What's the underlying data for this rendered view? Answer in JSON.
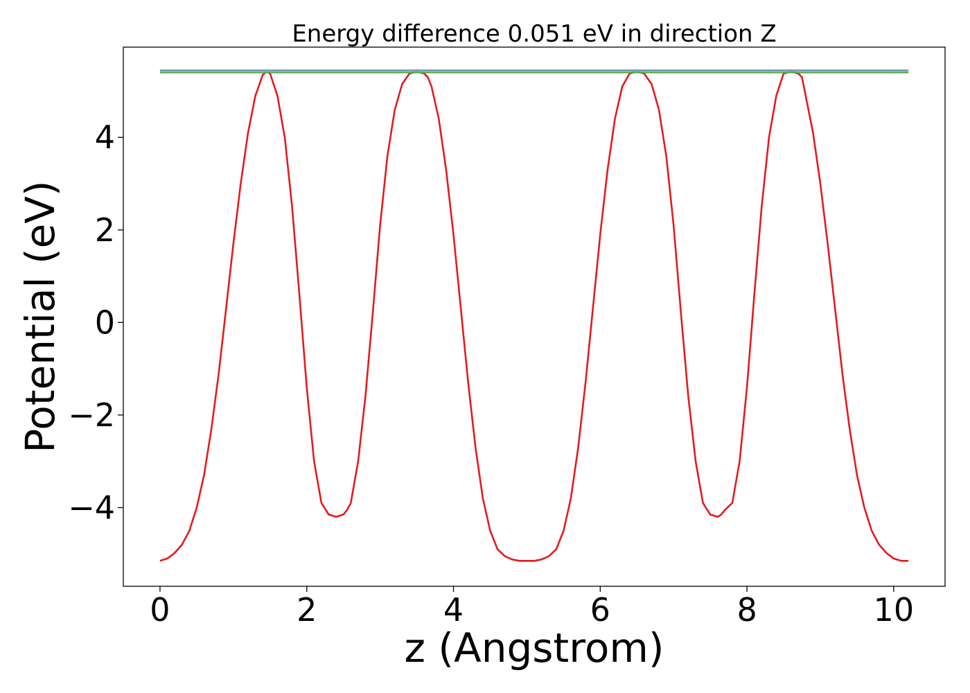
{
  "chart_data": {
    "type": "line",
    "title": "Energy difference 0.051 eV in direction Z",
    "xlabel": "z (Angstrom)",
    "ylabel": "Potential (eV)",
    "xlim": [
      -0.5,
      10.7
    ],
    "ylim": [
      -5.7,
      5.95
    ],
    "xticks": [
      0,
      2,
      4,
      6,
      8,
      10
    ],
    "xtick_labels": [
      "0",
      "2",
      "4",
      "6",
      "8",
      "10"
    ],
    "yticks": [
      -4,
      -2,
      0,
      2,
      4
    ],
    "ytick_labels": [
      "−4",
      "−2",
      "0",
      "2",
      "4"
    ],
    "grid": false,
    "series": [
      {
        "color": "#e41a1c",
        "style": "curve",
        "x": [
          0.0,
          0.1,
          0.2,
          0.3,
          0.4,
          0.5,
          0.6,
          0.7,
          0.8,
          0.9,
          1.0,
          1.1,
          1.2,
          1.3,
          1.4,
          1.45,
          1.5,
          1.6,
          1.7,
          1.8,
          1.9,
          2.0,
          2.1,
          2.2,
          2.3,
          2.4,
          2.5,
          2.55,
          2.6,
          2.7,
          2.8,
          2.9,
          3.0,
          3.1,
          3.2,
          3.3,
          3.4,
          3.5,
          3.6,
          3.65,
          3.7,
          3.8,
          3.9,
          4.0,
          4.1,
          4.2,
          4.3,
          4.4,
          4.5,
          4.6,
          4.7,
          4.8,
          4.9,
          5.0,
          5.1,
          5.2,
          5.3,
          5.4,
          5.5,
          5.6,
          5.7,
          5.8,
          5.9,
          6.0,
          6.1,
          6.2,
          6.3,
          6.4,
          6.5,
          6.6,
          6.7,
          6.8,
          6.9,
          7.0,
          7.1,
          7.2,
          7.3,
          7.4,
          7.5,
          7.6,
          7.65,
          7.7,
          7.8,
          7.9,
          8.0,
          8.1,
          8.2,
          8.3,
          8.4,
          8.5,
          8.6,
          8.7,
          8.75,
          8.8,
          8.9,
          9.0,
          9.1,
          9.2,
          9.3,
          9.4,
          9.5,
          9.6,
          9.7,
          9.8,
          9.9,
          10.0,
          10.1,
          10.2
        ],
        "y": [
          -5.15,
          -5.1,
          -4.98,
          -4.8,
          -4.5,
          -4.0,
          -3.3,
          -2.3,
          -1.1,
          0.3,
          1.7,
          3.0,
          4.1,
          4.9,
          5.35,
          5.42,
          5.38,
          4.9,
          4.0,
          2.5,
          0.6,
          -1.4,
          -3.0,
          -3.9,
          -4.15,
          -4.2,
          -4.15,
          -4.05,
          -3.9,
          -3.0,
          -1.6,
          0.2,
          2.1,
          3.6,
          4.6,
          5.15,
          5.38,
          5.42,
          5.38,
          5.3,
          5.1,
          4.4,
          3.3,
          1.9,
          0.3,
          -1.3,
          -2.7,
          -3.8,
          -4.5,
          -4.9,
          -5.05,
          -5.12,
          -5.15,
          -5.15,
          -5.15,
          -5.12,
          -5.05,
          -4.9,
          -4.5,
          -3.8,
          -2.7,
          -1.3,
          0.3,
          1.9,
          3.3,
          4.4,
          5.1,
          5.38,
          5.42,
          5.38,
          5.15,
          4.6,
          3.6,
          2.1,
          0.2,
          -1.6,
          -3.0,
          -3.9,
          -4.15,
          -4.2,
          -4.15,
          -4.05,
          -3.9,
          -3.0,
          -1.4,
          0.6,
          2.5,
          4.0,
          4.9,
          5.38,
          5.42,
          5.38,
          5.3,
          4.9,
          4.1,
          3.0,
          1.7,
          0.3,
          -1.1,
          -2.3,
          -3.3,
          -4.0,
          -4.5,
          -4.8,
          -4.98,
          -5.1,
          -5.15,
          -5.15
        ]
      },
      {
        "color": "#4d8fbf",
        "style": "flat",
        "x": [
          0.0,
          10.2
        ],
        "y": [
          5.45,
          5.45
        ]
      },
      {
        "color": "#4daf4a",
        "style": "flat",
        "x": [
          0.0,
          10.2
        ],
        "y": [
          5.4,
          5.4
        ]
      },
      {
        "color": "#a0a0a0",
        "style": "flat",
        "x": [
          0.0,
          10.2
        ],
        "y": [
          5.43,
          5.43
        ]
      }
    ]
  }
}
